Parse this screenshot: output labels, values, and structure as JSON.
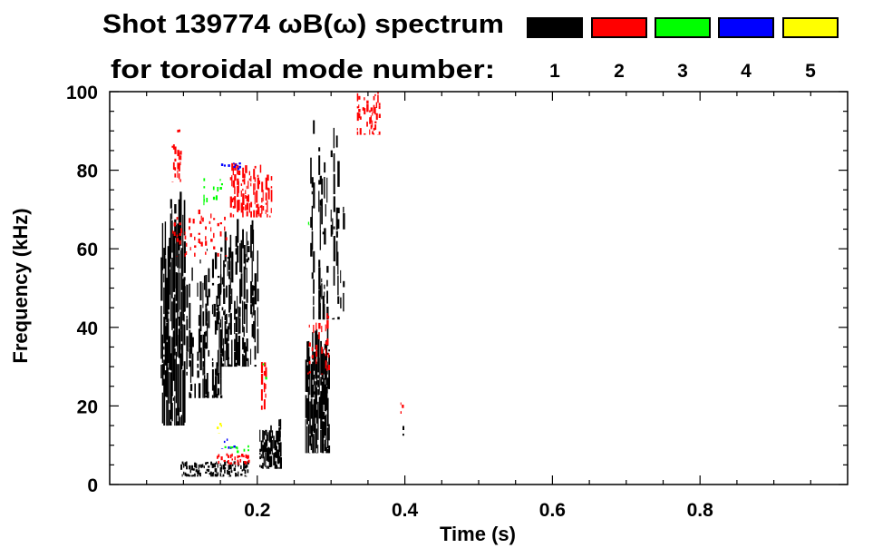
{
  "chart_data": {
    "type": "heatmap",
    "title": "Shot 139774 ωB(ω) spectrum",
    "subtitle": "for toroidal mode number:",
    "xlabel": "Time (s)",
    "ylabel": "Frequency (kHz)",
    "xlim": [
      0,
      1.0
    ],
    "ylim": [
      0,
      100
    ],
    "x_ticks": [
      0.2,
      0.4,
      0.6,
      0.8
    ],
    "x_tick_labels": [
      "0.2",
      "0.4",
      "0.6",
      "0.8"
    ],
    "y_ticks": [
      0,
      20,
      40,
      60,
      80,
      100
    ],
    "y_tick_labels": [
      "0",
      "20",
      "40",
      "60",
      "80",
      "100"
    ],
    "legend": {
      "placement": "top-right",
      "entries": [
        {
          "label": "1",
          "color": "#000000"
        },
        {
          "label": "2",
          "color": "#ff0000"
        },
        {
          "label": "3",
          "color": "#00ff00"
        },
        {
          "label": "4",
          "color": "#0000ff"
        },
        {
          "label": "5",
          "color": "#ffff00"
        }
      ]
    },
    "regions": [
      {
        "mode": 1,
        "t": [
          0.069,
          0.102
        ],
        "f": [
          15,
          75
        ],
        "density": 0.75
      },
      {
        "mode": 1,
        "t": [
          0.1,
          0.15
        ],
        "f": [
          22,
          60
        ],
        "density": 0.5
      },
      {
        "mode": 1,
        "t": [
          0.15,
          0.2
        ],
        "f": [
          30,
          68
        ],
        "density": 0.6
      },
      {
        "mode": 1,
        "t": [
          0.096,
          0.188
        ],
        "f": [
          2,
          6
        ],
        "density": 0.7
      },
      {
        "mode": 1,
        "t": [
          0.203,
          0.231
        ],
        "f": [
          4,
          17
        ],
        "density": 0.75
      },
      {
        "mode": 1,
        "t": [
          0.265,
          0.298
        ],
        "f": [
          8,
          40
        ],
        "density": 0.85
      },
      {
        "mode": 1,
        "t": [
          0.268,
          0.317
        ],
        "f": [
          42,
          93
        ],
        "density": 0.35
      },
      {
        "mode": 1,
        "t": [
          0.395,
          0.398
        ],
        "f": [
          12,
          15
        ],
        "density": 0.6
      },
      {
        "mode": 2,
        "t": [
          0.163,
          0.219
        ],
        "f": [
          68,
          82
        ],
        "density": 0.55
      },
      {
        "mode": 2,
        "t": [
          0.335,
          0.366
        ],
        "f": [
          89,
          100
        ],
        "density": 0.45
      },
      {
        "mode": 2,
        "t": [
          0.083,
          0.157
        ],
        "f": [
          58,
          70
        ],
        "density": 0.2
      },
      {
        "mode": 2,
        "t": [
          0.084,
          0.096
        ],
        "f": [
          77,
          91
        ],
        "density": 0.35
      },
      {
        "mode": 2,
        "t": [
          0.268,
          0.298
        ],
        "f": [
          28,
          45
        ],
        "density": 0.3
      },
      {
        "mode": 2,
        "t": [
          0.205,
          0.212
        ],
        "f": [
          19,
          33
        ],
        "density": 0.5
      },
      {
        "mode": 2,
        "t": [
          0.145,
          0.188
        ],
        "f": [
          5,
          8
        ],
        "density": 0.5
      },
      {
        "mode": 2,
        "t": [
          0.394,
          0.397
        ],
        "f": [
          18,
          21
        ],
        "density": 0.8
      },
      {
        "mode": 3,
        "t": [
          0.127,
          0.151
        ],
        "f": [
          70,
          78
        ],
        "density": 0.3
      },
      {
        "mode": 3,
        "t": [
          0.205,
          0.212
        ],
        "f": [
          26,
          31
        ],
        "density": 0.4
      },
      {
        "mode": 3,
        "t": [
          0.15,
          0.188
        ],
        "f": [
          8,
          10
        ],
        "density": 0.35
      },
      {
        "mode": 3,
        "t": [
          0.267,
          0.27
        ],
        "f": [
          66,
          69
        ],
        "density": 0.6
      },
      {
        "mode": 4,
        "t": [
          0.151,
          0.175
        ],
        "f": [
          80,
          82
        ],
        "density": 0.3
      },
      {
        "mode": 4,
        "t": [
          0.151,
          0.168
        ],
        "f": [
          9,
          12
        ],
        "density": 0.3
      },
      {
        "mode": 5,
        "t": [
          0.145,
          0.163
        ],
        "f": [
          13,
          16
        ],
        "density": 0.25
      }
    ]
  }
}
